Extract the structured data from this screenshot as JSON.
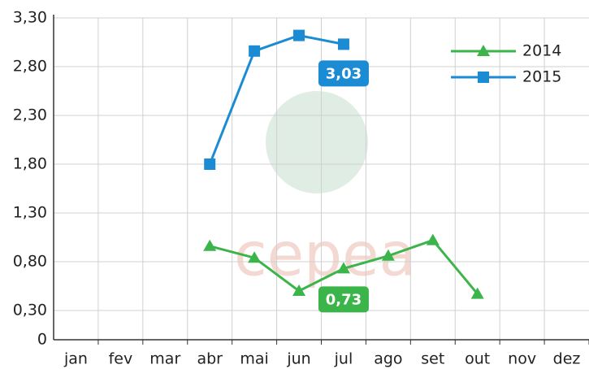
{
  "chart_data": {
    "type": "line",
    "categories": [
      "jan",
      "fev",
      "mar",
      "abr",
      "mai",
      "jun",
      "jul",
      "ago",
      "set",
      "out",
      "nov",
      "dez"
    ],
    "series": [
      {
        "name": "2014",
        "color": "#3bb54a",
        "marker": "triangle",
        "values": [
          null,
          null,
          null,
          0.96,
          0.84,
          0.5,
          0.73,
          0.86,
          1.02,
          0.47,
          null,
          null
        ],
        "value_labels": [
          null,
          null,
          null,
          null,
          null,
          null,
          "0,73",
          null,
          null,
          null,
          null,
          null
        ]
      },
      {
        "name": "2015",
        "color": "#1b8bd3",
        "marker": "square",
        "values": [
          null,
          null,
          null,
          1.8,
          2.96,
          3.12,
          3.03,
          null,
          null,
          null,
          null,
          null
        ],
        "value_labels": [
          null,
          null,
          null,
          null,
          null,
          null,
          "3,03",
          null,
          null,
          null,
          null,
          null
        ]
      }
    ],
    "ylim": [
      0,
      3.3
    ],
    "yticks": [
      0,
      {
        "value": 0.3,
        "label": "0,30"
      },
      {
        "value": 0.8,
        "label": "0,80"
      },
      {
        "value": 1.3,
        "label": "1,30"
      },
      {
        "value": 1.8,
        "label": "1,80"
      },
      {
        "value": 2.3,
        "label": "2,30"
      },
      {
        "value": 2.8,
        "label": "2,80"
      },
      {
        "value": 3.3,
        "label": "3,30"
      }
    ],
    "grid": true,
    "legend": "upper right",
    "watermark": "cepea"
  }
}
